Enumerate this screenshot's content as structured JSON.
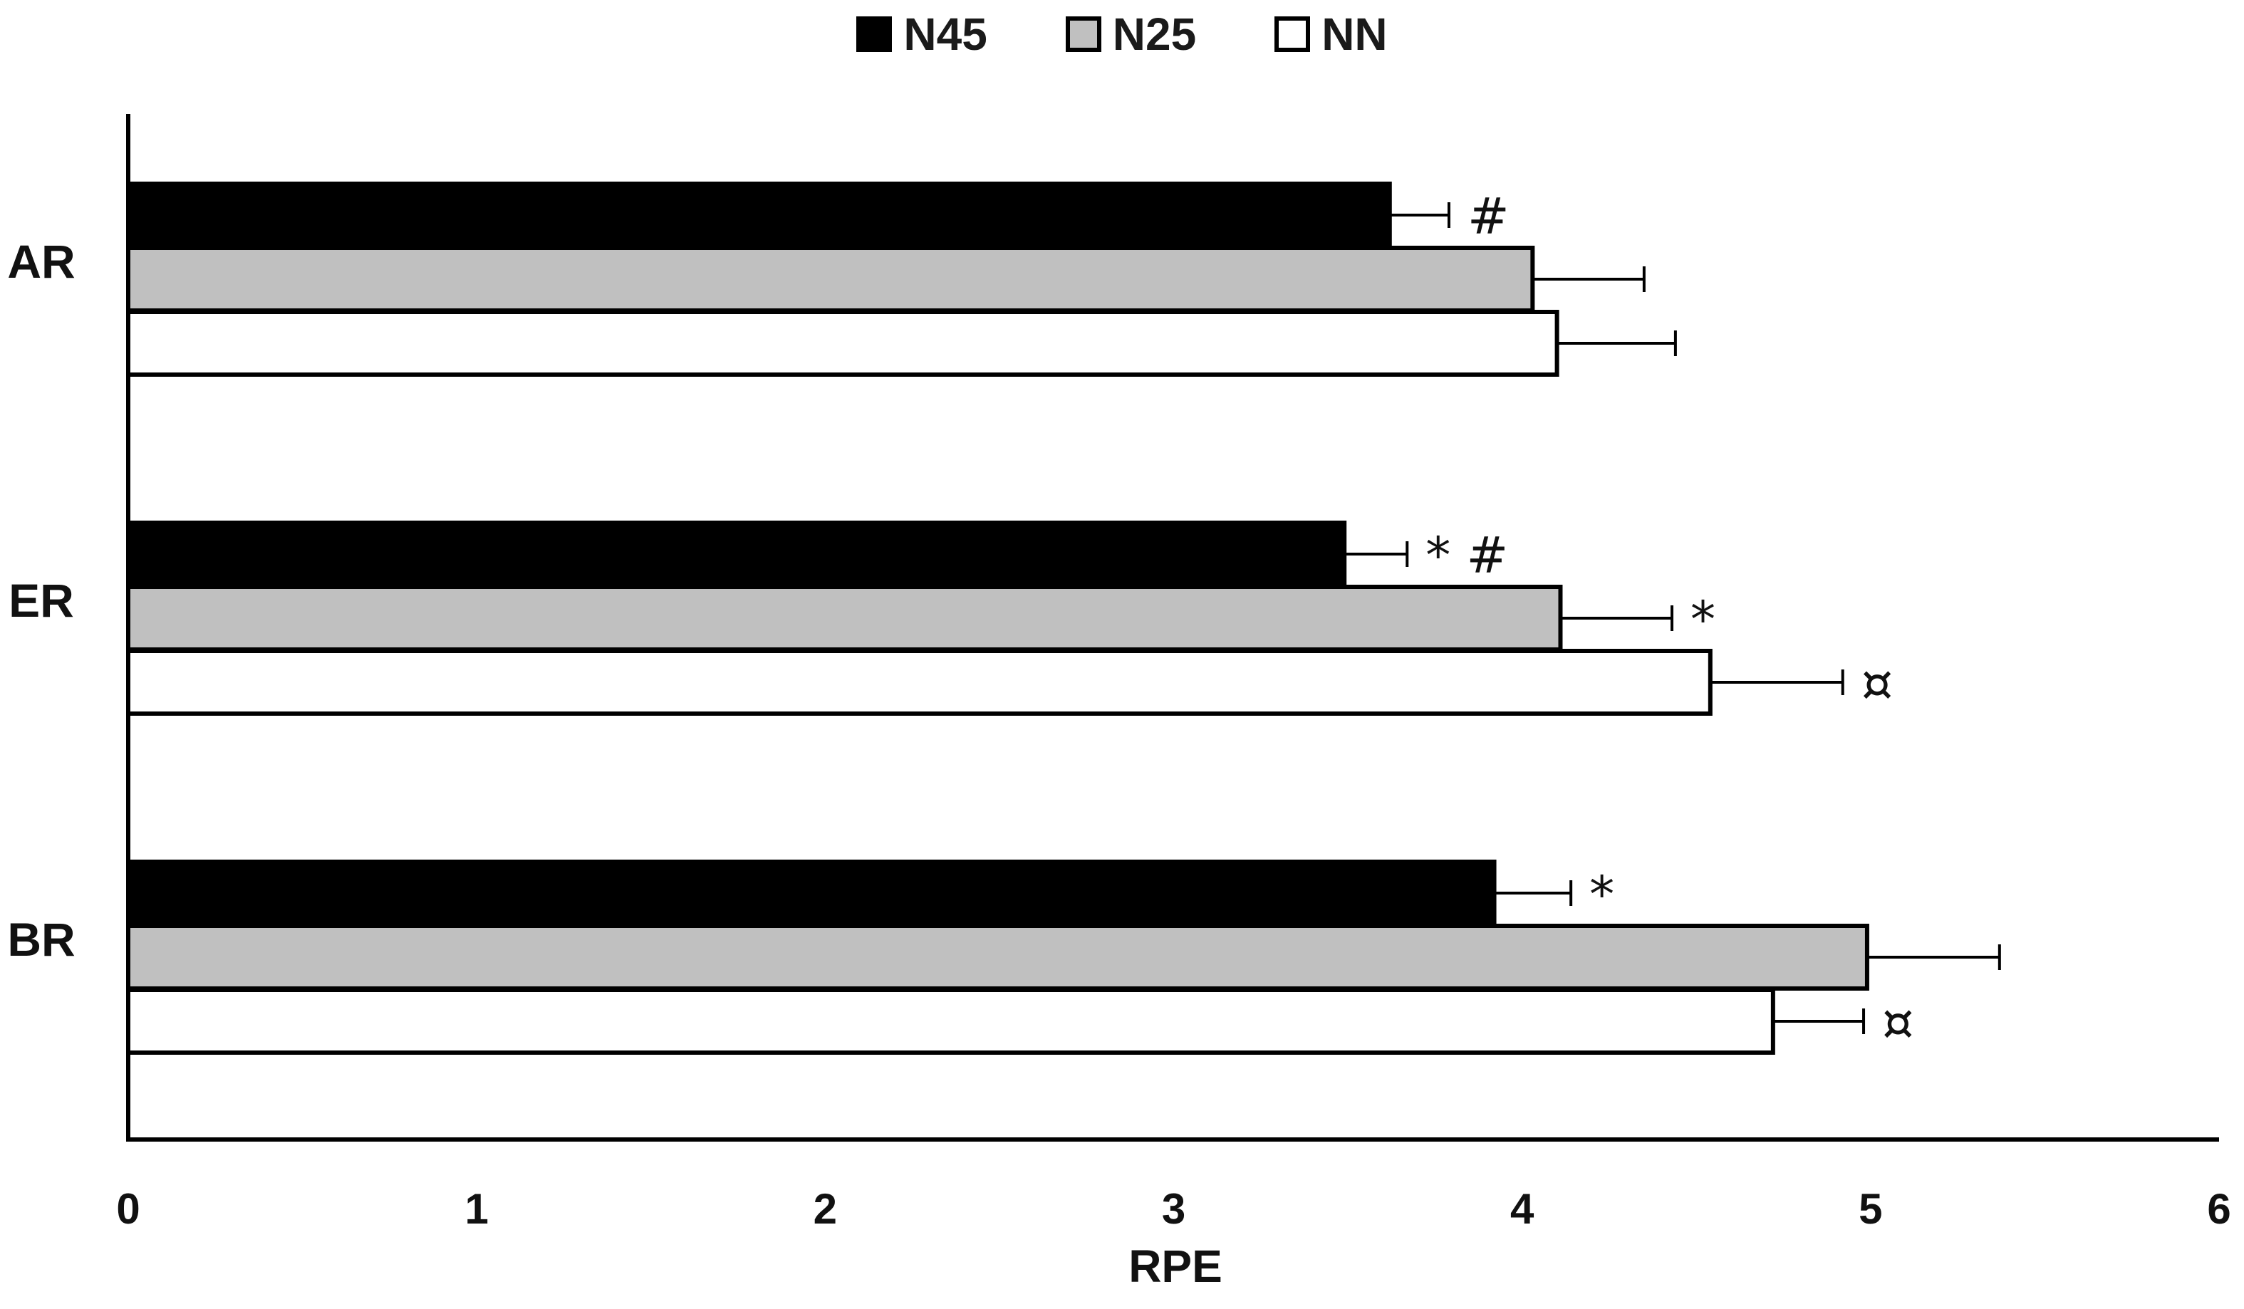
{
  "chart_data": {
    "type": "bar",
    "orientation": "horizontal",
    "categories": [
      "AR",
      "ER",
      "BR"
    ],
    "series": [
      {
        "name": "N45",
        "color": "#000000",
        "values": [
          3.62,
          3.49,
          3.92
        ],
        "errors": [
          0.17,
          0.18,
          0.22
        ],
        "annotations": [
          "#",
          "* #",
          "*"
        ]
      },
      {
        "name": "N25",
        "color": "#c0c0c0",
        "values": [
          4.03,
          4.11,
          4.99
        ],
        "errors": [
          0.32,
          0.32,
          0.38
        ],
        "annotations": [
          "",
          "*",
          ""
        ]
      },
      {
        "name": "NN",
        "color": "#ffffff",
        "values": [
          4.1,
          4.54,
          4.72
        ],
        "errors": [
          0.34,
          0.38,
          0.26
        ],
        "annotations": [
          "",
          "¤",
          "¤"
        ]
      }
    ],
    "xlabel": "RPE",
    "ylabel": "",
    "xlim": [
      0,
      6
    ],
    "xticks": [
      "0",
      "1",
      "2",
      "3",
      "4",
      "5",
      "6"
    ],
    "grid": false,
    "legend": "top-center"
  }
}
